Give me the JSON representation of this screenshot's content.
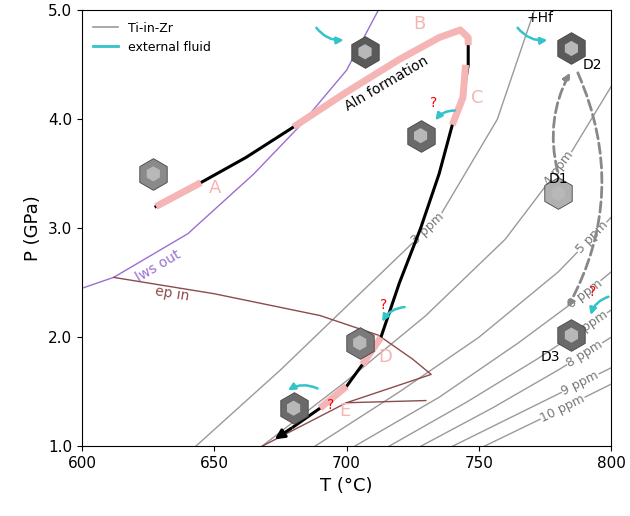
{
  "chart_data": {
    "type": "line",
    "xlabel": "T (°C)",
    "ylabel": "P (GPa)",
    "xlim": [
      600,
      800
    ],
    "ylim": [
      1.0,
      5.0
    ],
    "xticks": [
      600,
      650,
      700,
      750,
      800
    ],
    "yticks": [
      {
        "value": 1.0,
        "label": "1.0"
      },
      {
        "value": 2.0,
        "label": "2.0"
      },
      {
        "value": 3.0,
        "label": "3.0"
      },
      {
        "value": 4.0,
        "label": "4.0"
      },
      {
        "value": 5.0,
        "label": "5.0"
      }
    ],
    "legend": "upper left",
    "isopleths": {
      "name": "Ti-in-Zr",
      "color": "#9a9a9a",
      "lines": [
        {
          "label": "3 ppm",
          "x": [
            643,
            675,
            705,
            735,
            757,
            771
          ],
          "y": [
            1.0,
            1.7,
            2.4,
            3.1,
            4.0,
            5.0
          ]
        },
        {
          "label": "4 ppm",
          "x": [
            668,
            700,
            730,
            760,
            785,
            800
          ],
          "y": [
            1.0,
            1.6,
            2.2,
            2.9,
            3.7,
            4.3
          ]
        },
        {
          "label": "5 ppm",
          "x": [
            688,
            720,
            750,
            780,
            800
          ],
          "y": [
            1.0,
            1.5,
            2.0,
            2.6,
            3.1
          ]
        },
        {
          "label": "6 ppm",
          "x": [
            703,
            735,
            765,
            790,
            800
          ],
          "y": [
            1.0,
            1.45,
            1.95,
            2.4,
            2.6
          ]
        },
        {
          "label": "7 ppm",
          "x": [
            716,
            745,
            772,
            800
          ],
          "y": [
            1.0,
            1.4,
            1.8,
            2.25
          ]
        },
        {
          "label": "8 ppm",
          "x": [
            728,
            755,
            780,
            800
          ],
          "y": [
            1.0,
            1.35,
            1.7,
            2.0
          ]
        },
        {
          "label": "9 ppm",
          "x": [
            740,
            765,
            790,
            800
          ],
          "y": [
            1.0,
            1.3,
            1.6,
            1.72
          ]
        },
        {
          "label": "10 ppm",
          "x": [
            752,
            775,
            800
          ],
          "y": [
            1.0,
            1.27,
            1.57
          ]
        }
      ]
    },
    "external_fluid": {
      "name": "external fluid",
      "color": "#33c3c8"
    },
    "phase_boundaries": [
      {
        "label": "lws out",
        "color": "#9b6fd0",
        "x": [
          600,
          612,
          640,
          665,
          682,
          700,
          712
        ],
        "y": [
          2.45,
          2.55,
          2.95,
          3.5,
          3.93,
          4.45,
          5.0
        ]
      },
      {
        "label": "ep in",
        "color": "#8b4c4c",
        "x": [
          612,
          650,
          690,
          712,
          725,
          732,
          700,
          668,
          null,
          700,
          730
        ],
        "y": [
          2.55,
          2.4,
          2.2,
          2.02,
          1.8,
          1.66,
          1.4,
          1.0,
          null,
          1.4,
          1.42
        ]
      }
    ],
    "pt_path": {
      "color": "#000000",
      "x": [
        628,
        645,
        662,
        680,
        700,
        720,
        735,
        743,
        746,
        746,
        744,
        740,
        735,
        728,
        720,
        713,
        706,
        700,
        690,
        680,
        672
      ],
      "y": [
        3.2,
        3.42,
        3.65,
        3.93,
        4.25,
        4.55,
        4.75,
        4.82,
        4.75,
        4.5,
        4.2,
        3.95,
        3.5,
        3.0,
        2.5,
        2.0,
        1.75,
        1.55,
        1.35,
        1.18,
        1.05
      ]
    },
    "path_segments": {
      "color": "#f5b5b5",
      "segments": [
        {
          "label": "A",
          "x": [
            628,
            645
          ],
          "y": [
            3.2,
            3.42
          ]
        },
        {
          "label": "B",
          "x": [
            680,
            700,
            720,
            735,
            743,
            746,
            746
          ],
          "y": [
            3.93,
            4.25,
            4.55,
            4.75,
            4.82,
            4.75,
            4.68
          ]
        },
        {
          "label": "C",
          "x": [
            745,
            744,
            740
          ],
          "y": [
            4.5,
            4.2,
            3.95
          ]
        },
        {
          "label": "D",
          "x": [
            713,
            706
          ],
          "y": [
            2.0,
            1.75
          ]
        },
        {
          "label": "E",
          "x": [
            700,
            690
          ],
          "y": [
            1.55,
            1.35
          ]
        }
      ]
    },
    "annotations": {
      "aln": "Aln formation",
      "hf": "+Hf",
      "d1": "D1",
      "d2": "D2",
      "d3": "D3",
      "question": "?"
    }
  }
}
